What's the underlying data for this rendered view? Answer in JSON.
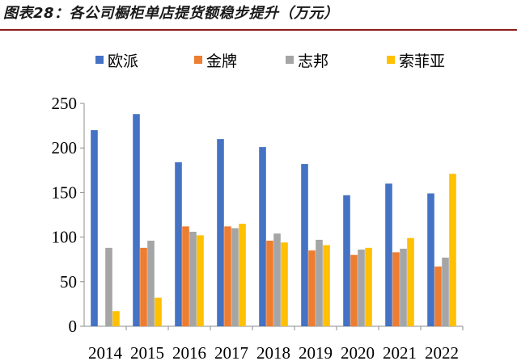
{
  "figure": {
    "title": "图表28：各公司橱柜单店提货额稳步提升（万元）"
  },
  "chart_data": {
    "type": "bar",
    "categories": [
      "2014",
      "2015",
      "2016",
      "2017",
      "2018",
      "2019",
      "2020",
      "2021",
      "2022"
    ],
    "series": [
      {
        "name": "欧派",
        "color": "#4472c4",
        "values": [
          220,
          238,
          184,
          210,
          201,
          182,
          147,
          160,
          149
        ]
      },
      {
        "name": "金牌",
        "color": "#ed7d31",
        "values": [
          null,
          88,
          112,
          112,
          96,
          85,
          80,
          83,
          67
        ]
      },
      {
        "name": "志邦",
        "color": "#a5a5a5",
        "values": [
          88,
          96,
          106,
          110,
          104,
          97,
          86,
          87,
          77
        ]
      },
      {
        "name": "索菲亚",
        "color": "#ffc000",
        "values": [
          17,
          32,
          102,
          115,
          94,
          91,
          88,
          99,
          171
        ]
      }
    ],
    "ylim": [
      0,
      250
    ],
    "yticks": [
      0,
      50,
      100,
      150,
      200,
      250
    ],
    "legend_position": "top",
    "grid": false
  }
}
